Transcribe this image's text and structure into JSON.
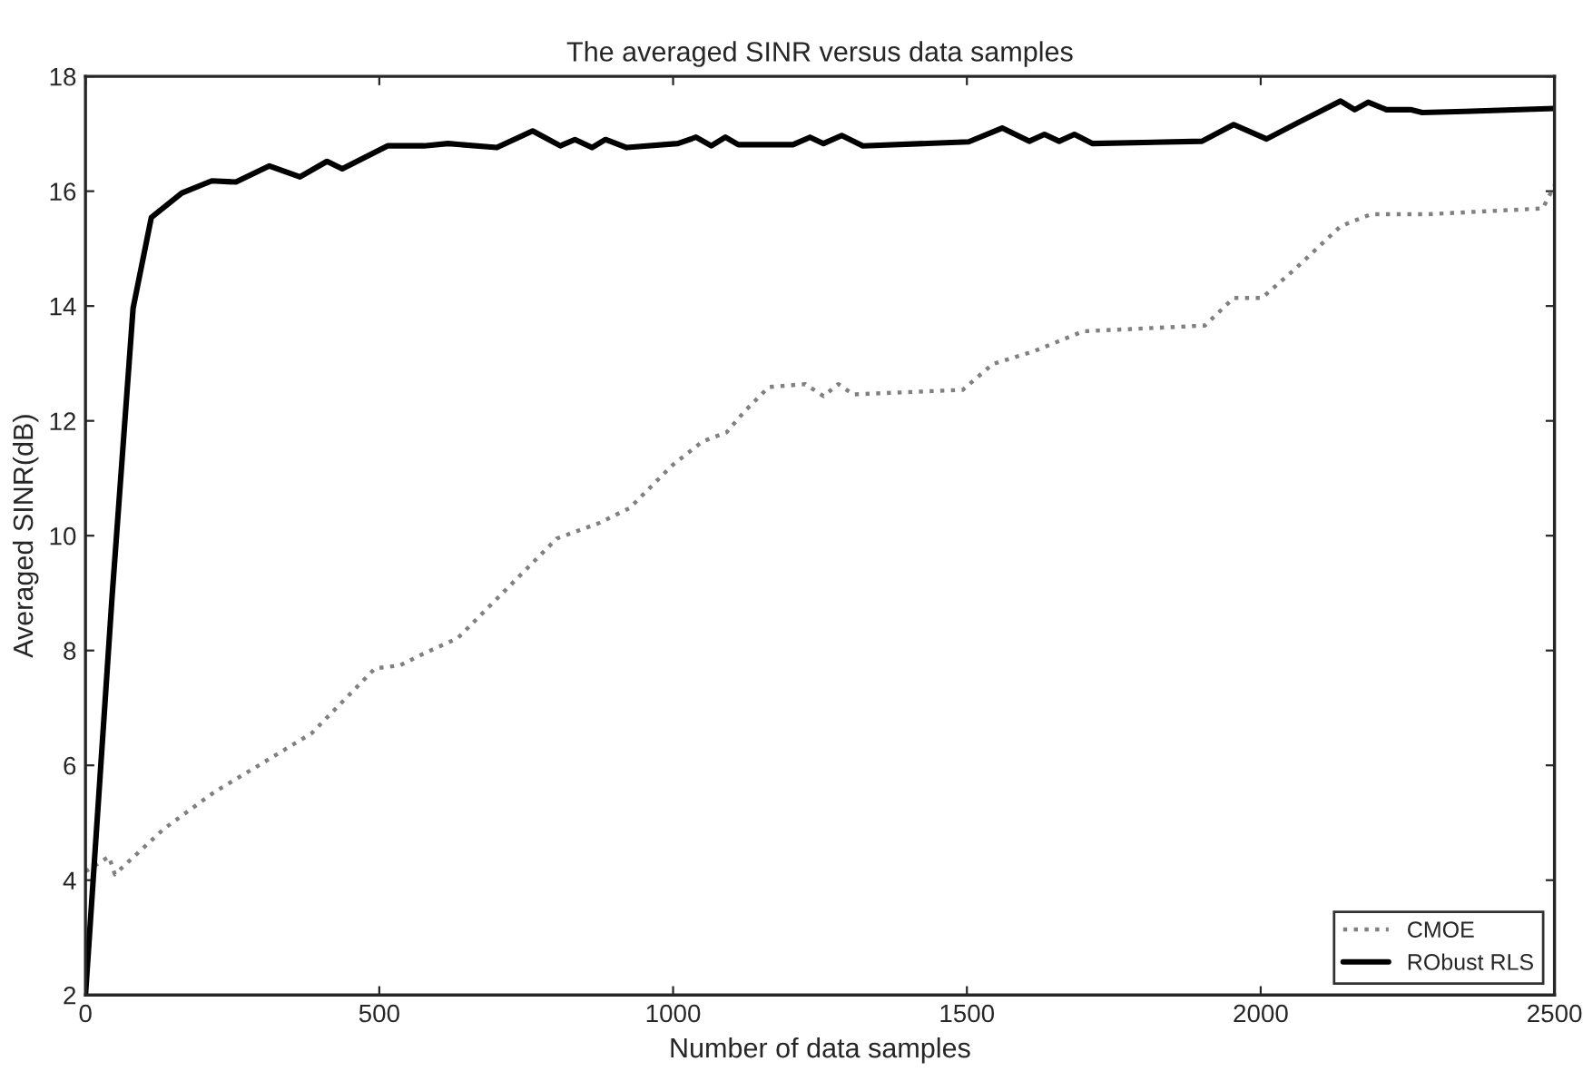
{
  "chart_data": {
    "type": "line",
    "title": "The averaged SINR versus data samples",
    "xlabel": "Number of data samples",
    "ylabel": "Averaged SINR(dB)",
    "xlim": [
      0,
      2500
    ],
    "xticks": [
      0,
      500,
      1000,
      1500,
      2000,
      2500
    ],
    "ylim": [
      2,
      18
    ],
    "yticks": [
      2,
      4,
      6,
      8,
      10,
      12,
      14,
      16,
      18
    ],
    "grid": false,
    "legend": "bottom right",
    "series": [
      {
        "name": "CMOE",
        "color": "#808080",
        "line_style": "dotted",
        "x": [
          0,
          40,
          50,
          133,
          220,
          287,
          385,
          493,
          535,
          576,
          633,
          700,
          802,
          874,
          926,
          998,
          1050,
          1091,
          1122,
          1163,
          1225,
          1256,
          1281,
          1307,
          1493,
          1544,
          1616,
          1698,
          1905,
          1954,
          2002,
          2059,
          2136,
          2188,
          2286,
          2480,
          2500
        ],
        "values": [
          4.15,
          4.41,
          4.1,
          4.89,
          5.54,
          5.95,
          6.56,
          7.69,
          7.74,
          7.95,
          8.21,
          8.9,
          9.95,
          10.22,
          10.48,
          11.22,
          11.64,
          11.8,
          12.17,
          12.59,
          12.64,
          12.43,
          12.64,
          12.46,
          12.54,
          12.99,
          13.22,
          13.56,
          13.66,
          14.14,
          14.14,
          14.65,
          15.39,
          15.6,
          15.6,
          15.7,
          16.1
        ]
      },
      {
        "name": "RObust RLS",
        "color": "#000000",
        "line_style": "solid",
        "x": [
          0,
          45,
          81,
          112,
          164,
          215,
          256,
          313,
          365,
          411,
          437,
          514,
          576,
          617,
          700,
          761,
          808,
          833,
          862,
          885,
          921,
          1008,
          1039,
          1065,
          1089,
          1111,
          1204,
          1233,
          1256,
          1287,
          1323,
          1503,
          1560,
          1606,
          1632,
          1657,
          1683,
          1714,
          1900,
          1954,
          2010,
          2059,
          2136,
          2160,
          2183,
          2214,
          2255,
          2275,
          2347,
          2500
        ],
        "values": [
          2,
          8.9,
          13.96,
          15.54,
          15.97,
          16.18,
          16.16,
          16.44,
          16.25,
          16.52,
          16.39,
          16.79,
          16.79,
          16.83,
          16.76,
          17.05,
          16.79,
          16.9,
          16.76,
          16.9,
          16.76,
          16.83,
          16.94,
          16.79,
          16.94,
          16.81,
          16.81,
          16.94,
          16.83,
          16.97,
          16.79,
          16.86,
          17.1,
          16.87,
          16.99,
          16.87,
          16.99,
          16.83,
          16.87,
          17.16,
          16.91,
          17.17,
          17.57,
          17.42,
          17.55,
          17.42,
          17.42,
          17.37,
          17.39,
          17.44
        ]
      }
    ]
  }
}
